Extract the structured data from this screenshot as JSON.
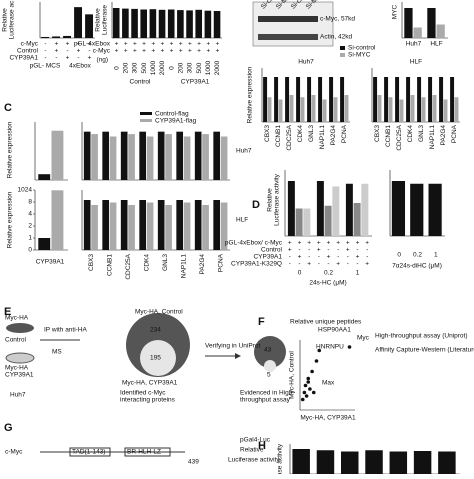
{
  "panel_labels": {
    "c": "C",
    "d": "D",
    "e": "E",
    "f": "F",
    "g": "G",
    "h": "H"
  },
  "a": {
    "ylabel": [
      "Relative",
      "Luciferase ac"
    ],
    "ylim": [
      0,
      3.5
    ],
    "series": [
      {
        "color": "#111",
        "values": [
          0.1,
          0.15,
          0.2,
          3.0,
          2.3
        ]
      }
    ],
    "rows": [
      {
        "label": "c-Myc",
        "marks": [
          "-",
          "+",
          "+",
          "+",
          "+"
        ]
      },
      {
        "label": "Control",
        "marks": [
          "-",
          "+",
          "-",
          "+",
          "-"
        ]
      },
      {
        "label": "CYP39A1",
        "marks": [
          "-",
          "-",
          "+",
          "-",
          "+"
        ]
      }
    ],
    "groups": [
      "pGL- MCS",
      "4xEbox"
    ]
  },
  "b": {
    "ylabel": [
      "Relative",
      "Luciferase"
    ],
    "ylim": [
      0,
      1.2
    ],
    "series": [
      {
        "color": "#111",
        "values": [
          1.0,
          0.98,
          0.97,
          0.95,
          0.96,
          0.94,
          0.95,
          0.93,
          0.92,
          0.94,
          0.91,
          0.9
        ]
      }
    ],
    "rows": [
      {
        "label": "pGL-4xEbox",
        "marks": [
          "+",
          "+",
          "+",
          "+",
          "+",
          "+",
          "+",
          "+",
          "+",
          "+",
          "+",
          "+"
        ]
      },
      {
        "label": "c-Myc",
        "marks": [
          "+",
          "+",
          "+",
          "+",
          "+",
          "+",
          "+",
          "+",
          "+",
          "+",
          "+",
          "+"
        ]
      }
    ],
    "unit": "(ng)",
    "doses": [
      "0",
      "200",
      "300",
      "500",
      "1000",
      "2000",
      "0",
      "200",
      "300",
      "500",
      "1000",
      "2000"
    ],
    "groups": [
      "Control",
      "CYP39A1"
    ]
  },
  "blot": {
    "lanes": [
      "Si-control",
      "Si-MYC",
      "Si-control",
      "Si-MYC"
    ],
    "bands": [
      "c-Myc, 57kd",
      "Actin, 42kd"
    ]
  },
  "si": {
    "ylabel": "MYC",
    "categories": [
      "Huh7",
      "HLF"
    ],
    "series": [
      {
        "name": "Si-control",
        "color": "#111",
        "values": [
          1.0,
          1.0
        ]
      },
      {
        "name": "Si-MYC",
        "color": "#aaa",
        "values": [
          0.35,
          0.45
        ]
      }
    ],
    "ylim": [
      0,
      1.2
    ]
  },
  "genes": [
    "CBX3",
    "CCNB1",
    "CDC25A",
    "CDK4",
    "GNL3",
    "NAP1L1",
    "PA2G4",
    "PCNA"
  ],
  "si_genes": {
    "ylabel": "Relative expression",
    "charts": [
      {
        "title": "Huh7",
        "ylim": [
          0,
          1.2
        ],
        "series": [
          {
            "color": "#111",
            "values": [
              1,
              1,
              1,
              1,
              1,
              1,
              1,
              1
            ]
          },
          {
            "color": "#aaa",
            "values": [
              0.55,
              0.5,
              0.6,
              0.55,
              0.6,
              0.5,
              0.55,
              0.6
            ]
          }
        ]
      },
      {
        "title": "HLF",
        "ylim": [
          0,
          1.2
        ],
        "series": [
          {
            "color": "#111",
            "values": [
              1,
              1,
              1,
              1,
              1,
              1,
              1,
              1
            ]
          },
          {
            "color": "#aaa",
            "values": [
              0.6,
              0.55,
              0.5,
              0.6,
              0.55,
              0.6,
              0.5,
              0.55
            ]
          }
        ]
      }
    ]
  },
  "c": {
    "legend": [
      {
        "name": "Control-flag",
        "color": "#111"
      },
      {
        "name": "CYP39A1-flag",
        "color": "#aaa"
      }
    ],
    "ylabel": "Relative expression",
    "xlabel": "CYP39A1",
    "huh7_left": {
      "ylim": [
        0,
        10
      ],
      "series": [
        {
          "color": "#111",
          "values": [
            1
          ]
        },
        {
          "color": "#aaa",
          "values": [
            8.5
          ]
        }
      ]
    },
    "hlf_left": {
      "yticks": [
        0,
        1,
        2,
        4,
        8,
        1024
      ],
      "series": [
        {
          "color": "#111",
          "values": [
            1
          ]
        },
        {
          "color": "#aaa",
          "values": [
            1000
          ]
        }
      ]
    },
    "charts": [
      {
        "title": "Huh7",
        "ylim": [
          0,
          1.2
        ],
        "series": [
          {
            "color": "#111",
            "values": [
              1,
              1,
              1,
              1,
              1,
              1,
              1,
              1
            ]
          },
          {
            "color": "#aaa",
            "values": [
              0.95,
              0.9,
              0.95,
              0.9,
              0.95,
              0.9,
              0.95,
              0.9
            ]
          }
        ]
      },
      {
        "title": "HLF",
        "ylim": [
          0,
          1.2
        ],
        "series": [
          {
            "color": "#111",
            "values": [
              1,
              1,
              1,
              1,
              1,
              1,
              1,
              1
            ]
          },
          {
            "color": "#aaa",
            "values": [
              0.9,
              0.95,
              0.9,
              0.95,
              0.9,
              0.95,
              0.9,
              0.95
            ]
          }
        ]
      }
    ]
  },
  "d": {
    "ylabel": [
      "Relative",
      "Luciferase activity"
    ],
    "ylim": [
      0,
      1.2
    ],
    "left": {
      "series": [
        {
          "color": "#111",
          "values": [
            1.0,
            1.0,
            0.95
          ]
        },
        {
          "color": "#888",
          "values": [
            0.5,
            0.55,
            0.6
          ]
        },
        {
          "color": "#ccc",
          "values": [
            0.5,
            0.9,
            0.95
          ]
        }
      ]
    },
    "right": {
      "series": [
        {
          "color": "#111",
          "values": [
            1.0,
            0.95,
            0.95
          ]
        }
      ]
    },
    "rows": [
      {
        "label": "pGL-4xEbox/ c-Myc",
        "marks": [
          "+",
          "+",
          "+",
          "+",
          "+",
          "+",
          "+",
          "+",
          "+"
        ]
      },
      {
        "label": "Control",
        "marks": [
          "+",
          "-",
          "-",
          "+",
          "-",
          "-",
          "+",
          "-",
          "-"
        ]
      },
      {
        "label": "CYP39A1",
        "marks": [
          "-",
          "+",
          "-",
          "-",
          "+",
          "-",
          "-",
          "+",
          "-"
        ]
      },
      {
        "label": "CYP39A1-K329Q",
        "marks": [
          "-",
          "-",
          "+",
          "-",
          "-",
          "+",
          "-",
          "-",
          "+"
        ]
      }
    ],
    "doses": [
      "0",
      "0.2",
      "1"
    ],
    "xlabel": "24s-HC (μM)",
    "right_doses": [
      "0",
      "0.2",
      "1"
    ],
    "right_xlabel": "7α24s-diHC (μM)"
  },
  "e": {
    "steps": [
      "IP with anti-HA",
      "MS",
      "Verifying in UniProt"
    ],
    "cells": [
      "Myc-HA",
      "Control",
      "Myc-HA",
      "CYP39A1"
    ],
    "cell_line": "Huh7",
    "venn1": {
      "top": "Myc-HA, Control",
      "top_n": "234",
      "mid_n": "195",
      "bottom": "Myc-HA, CYP39A1"
    },
    "venn2": {
      "top_n": "43",
      "bottom_n": "5"
    },
    "captions": [
      "Identified c-Myc",
      "interacting proteins",
      "Evidenced in High-",
      "throughput assay"
    ]
  },
  "f": {
    "title": "Relative unique peptides",
    "xlabel": "Myc-HA, CYP39A1",
    "ylabel": "Myc-HA, Control",
    "xlim": [
      0,
      10
    ],
    "ylim": [
      0,
      10
    ],
    "legend": [
      "High-throughput assay (Uniprot)",
      "Affinity Capture-Western (Literatures)"
    ],
    "labels": [
      "HSP90AA1",
      "HNRNPU",
      "Max",
      "Myc"
    ],
    "points": {
      "x": [
        3.5,
        3.0,
        2.2,
        1.5,
        1.0,
        1.8,
        0.8,
        1.2,
        0.5,
        2.5,
        9.0,
        1.5
      ],
      "y": [
        8.5,
        7.0,
        5.5,
        4.5,
        3.5,
        3.0,
        2.5,
        2.0,
        1.5,
        2.5,
        9.0,
        4.0
      ]
    }
  },
  "g": {
    "protein": "c-Myc",
    "domains": [
      "TAD(1-143)",
      "BR-HLH-LZ"
    ],
    "end": "439",
    "reporter": "pGal4-Luc",
    "ylabel": [
      "Relative",
      "Luciferase activity"
    ]
  },
  "h": {
    "ylabel": "ase activity",
    "ylim": [
      0,
      1.2
    ],
    "series": [
      {
        "color": "#111",
        "values": [
          1.0,
          0.95,
          0.9,
          0.95,
          0.9,
          0.92,
          0.9
        ]
      }
    ]
  }
}
